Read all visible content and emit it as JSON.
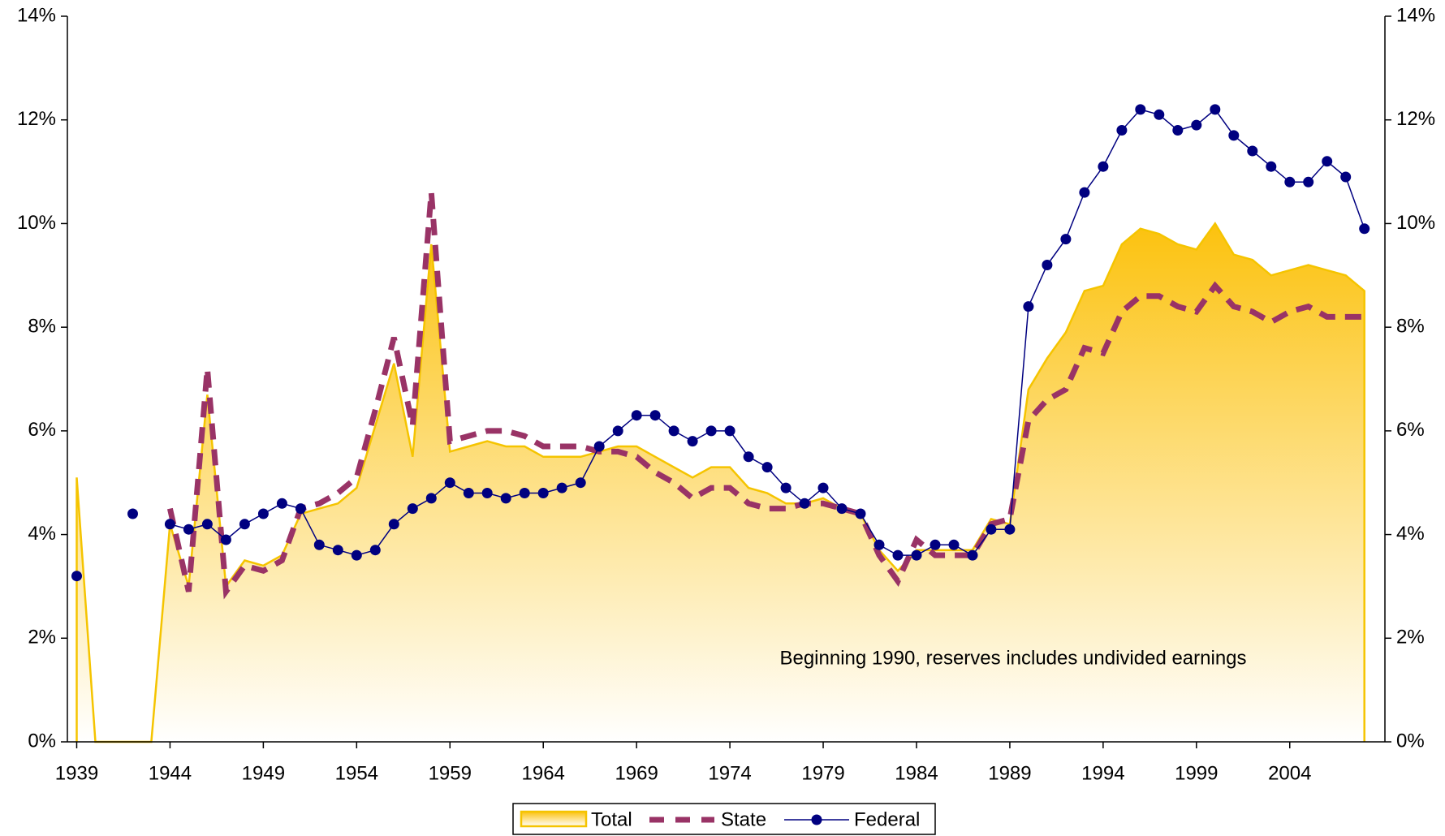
{
  "chart_data": {
    "type": "line",
    "annotation": "Beginning 1990, reserves includes undivided earnings",
    "x": [
      1939,
      1940,
      1941,
      1942,
      1943,
      1944,
      1945,
      1946,
      1947,
      1948,
      1949,
      1950,
      1951,
      1952,
      1953,
      1954,
      1955,
      1956,
      1957,
      1958,
      1959,
      1960,
      1961,
      1962,
      1963,
      1964,
      1965,
      1966,
      1967,
      1968,
      1969,
      1970,
      1971,
      1972,
      1973,
      1974,
      1975,
      1976,
      1977,
      1978,
      1979,
      1980,
      1981,
      1982,
      1983,
      1984,
      1985,
      1986,
      1987,
      1988,
      1989,
      1990,
      1991,
      1992,
      1993,
      1994,
      1995,
      1996,
      1997,
      1998,
      1999,
      2000,
      2001,
      2002,
      2003,
      2004,
      2005,
      2006,
      2007,
      2008
    ],
    "series": [
      {
        "name": "Total",
        "color": "#f5c400",
        "mark": "area",
        "values": [
          5.1,
          0,
          0,
          0,
          0,
          4.2,
          3.0,
          6.7,
          3.0,
          3.5,
          3.4,
          3.6,
          4.4,
          4.5,
          4.6,
          4.9,
          6.1,
          7.3,
          5.5,
          9.6,
          5.6,
          5.7,
          5.8,
          5.7,
          5.7,
          5.5,
          5.5,
          5.5,
          5.6,
          5.7,
          5.7,
          5.5,
          5.3,
          5.1,
          5.3,
          5.3,
          4.9,
          4.8,
          4.6,
          4.6,
          4.7,
          4.5,
          4.4,
          3.7,
          3.3,
          3.7,
          3.7,
          3.7,
          3.7,
          4.3,
          4.2,
          6.8,
          7.4,
          7.9,
          8.7,
          8.8,
          9.6,
          9.9,
          9.8,
          9.6,
          9.5,
          10.0,
          9.4,
          9.3,
          9.0,
          9.1,
          9.2,
          9.1,
          9.0,
          8.7
        ]
      },
      {
        "name": "State",
        "color": "#993366",
        "mark": "dashed",
        "values": [
          null,
          null,
          null,
          null,
          null,
          4.5,
          2.9,
          7.2,
          2.9,
          3.4,
          3.3,
          3.5,
          4.5,
          4.6,
          4.8,
          5.1,
          6.4,
          7.8,
          6.1,
          10.6,
          5.8,
          5.9,
          6.0,
          6.0,
          5.9,
          5.7,
          5.7,
          5.7,
          5.6,
          5.6,
          5.5,
          5.2,
          5.0,
          4.7,
          4.9,
          4.9,
          4.6,
          4.5,
          4.5,
          4.6,
          4.6,
          4.5,
          4.4,
          3.6,
          3.1,
          3.9,
          3.6,
          3.6,
          3.6,
          4.2,
          4.3,
          6.2,
          6.6,
          6.8,
          7.6,
          7.5,
          8.3,
          8.6,
          8.6,
          8.4,
          8.3,
          8.8,
          8.4,
          8.3,
          8.1,
          8.3,
          8.4,
          8.2,
          8.2,
          8.2
        ]
      },
      {
        "name": "Federal",
        "color": "#000080",
        "mark": "marker",
        "values": [
          3.2,
          null,
          null,
          4.4,
          null,
          4.2,
          4.1,
          4.2,
          3.9,
          4.2,
          4.4,
          4.6,
          4.5,
          3.8,
          3.7,
          3.6,
          3.7,
          4.2,
          4.5,
          4.7,
          5.0,
          4.8,
          4.8,
          4.7,
          4.8,
          4.8,
          4.9,
          5.0,
          5.7,
          6.0,
          6.3,
          6.3,
          6.0,
          5.8,
          6.0,
          6.0,
          5.5,
          5.3,
          4.9,
          4.6,
          4.9,
          4.5,
          4.4,
          3.8,
          3.6,
          3.6,
          3.8,
          3.8,
          3.6,
          4.1,
          4.1,
          8.4,
          9.2,
          9.7,
          10.6,
          11.1,
          11.8,
          12.2,
          12.1,
          11.8,
          11.9,
          12.2,
          11.7,
          11.4,
          11.1,
          10.8,
          10.8,
          11.2,
          10.9,
          9.9
        ]
      }
    ],
    "xlim": [
      1938.5,
      2009.1
    ],
    "xticks": [
      1939,
      1944,
      1949,
      1954,
      1959,
      1964,
      1969,
      1974,
      1979,
      1984,
      1989,
      1994,
      1999,
      2004
    ],
    "ylim": [
      0,
      14
    ],
    "yticks": [
      {
        "value": 0,
        "label": "0%"
      },
      {
        "value": 2,
        "label": "2%"
      },
      {
        "value": 4,
        "label": "4%"
      },
      {
        "value": 6,
        "label": "6%"
      },
      {
        "value": 8,
        "label": "8%"
      },
      {
        "value": 10,
        "label": "10%"
      },
      {
        "value": 12,
        "label": "12%"
      },
      {
        "value": 14,
        "label": "14%"
      }
    ],
    "y2lim": [
      0,
      14
    ],
    "y2ticks": [
      {
        "value": 0,
        "label": "0%"
      },
      {
        "value": 2,
        "label": "2%"
      },
      {
        "value": 4,
        "label": "4%"
      },
      {
        "value": 6,
        "label": "6%"
      },
      {
        "value": 8,
        "label": "8%"
      },
      {
        "value": 10,
        "label": "10%"
      },
      {
        "value": 12,
        "label": "12%"
      },
      {
        "value": 14,
        "label": "14%"
      }
    ],
    "grid": false,
    "legend": "bottom"
  }
}
